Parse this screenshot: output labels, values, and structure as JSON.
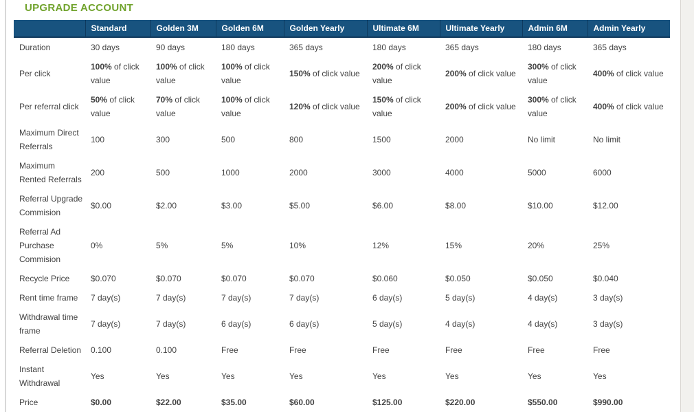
{
  "title": "UPGRADE ACCOUNT",
  "colors": {
    "title_green": "#71a32d",
    "header_blue": "#18537f",
    "header_text": "#ffffff",
    "body_text": "#424242"
  },
  "table": {
    "columns": [
      "",
      "Standard",
      "Golden 3M",
      "Golden 6M",
      "Golden Yearly",
      "Ultimate 6M",
      "Ultimate Yearly",
      "Admin 6M",
      "Admin Yearly"
    ],
    "rows": [
      {
        "label": "Duration",
        "cells": [
          "30 days",
          "90 days",
          "180 days",
          "365 days",
          "180 days",
          "365 days",
          "180 days",
          "365 days"
        ]
      },
      {
        "label": "Per click",
        "cells": [
          {
            "b": "100%",
            "t": " of click value"
          },
          {
            "b": "100%",
            "t": " of click value"
          },
          {
            "b": "100%",
            "t": " of click value"
          },
          {
            "b": "150%",
            "t": " of click value"
          },
          {
            "b": "200%",
            "t": " of click value"
          },
          {
            "b": "200%",
            "t": " of click value"
          },
          {
            "b": "300%",
            "t": " of click value"
          },
          {
            "b": "400%",
            "t": " of click value"
          }
        ]
      },
      {
        "label": "Per referral click",
        "cells": [
          {
            "b": "50%",
            "t": " of click value"
          },
          {
            "b": "70%",
            "t": " of click value"
          },
          {
            "b": "100%",
            "t": " of click value"
          },
          {
            "b": "120%",
            "t": " of click value"
          },
          {
            "b": "150%",
            "t": " of click value"
          },
          {
            "b": "200%",
            "t": " of click value"
          },
          {
            "b": "300%",
            "t": " of click value"
          },
          {
            "b": "400%",
            "t": " of click value"
          }
        ]
      },
      {
        "label": "Maximum Direct Referrals",
        "cells": [
          "100",
          "300",
          "500",
          "800",
          "1500",
          "2000",
          "No limit",
          "No limit"
        ]
      },
      {
        "label": "Maximum Rented Referrals",
        "cells": [
          "200",
          "500",
          "1000",
          "2000",
          "3000",
          "4000",
          "5000",
          "6000"
        ]
      },
      {
        "label": "Referral Upgrade Commision",
        "cells": [
          "$0.00",
          "$2.00",
          "$3.00",
          "$5.00",
          "$6.00",
          "$8.00",
          "$10.00",
          "$12.00"
        ]
      },
      {
        "label": "Referral Ad Purchase Commision",
        "cells": [
          "0%",
          "5%",
          "5%",
          "10%",
          "12%",
          "15%",
          "20%",
          "25%"
        ]
      },
      {
        "label": "Recycle Price",
        "cells": [
          "$0.070",
          "$0.070",
          "$0.070",
          "$0.070",
          "$0.060",
          "$0.050",
          "$0.050",
          "$0.040"
        ]
      },
      {
        "label": "Rent time frame",
        "cells": [
          "7 day(s)",
          "7 day(s)",
          "7 day(s)",
          "7 day(s)",
          "6 day(s)",
          "5 day(s)",
          "4 day(s)",
          "3 day(s)"
        ]
      },
      {
        "label": "Withdrawal time frame",
        "cells": [
          "7 day(s)",
          "7 day(s)",
          "6 day(s)",
          "6 day(s)",
          "5 day(s)",
          "4 day(s)",
          "4 day(s)",
          "3 day(s)"
        ]
      },
      {
        "label": "Referral Deletion",
        "cells": [
          "0.100",
          "0.100",
          "Free",
          "Free",
          "Free",
          "Free",
          "Free",
          "Free"
        ]
      },
      {
        "label": "Instant Withdrawal",
        "cells": [
          "Yes",
          "Yes",
          "Yes",
          "Yes",
          "Yes",
          "Yes",
          "Yes",
          "Yes"
        ]
      },
      {
        "label": "Price",
        "bold_values": true,
        "cells": [
          "$0.00",
          "$22.00",
          "$35.00",
          "$60.00",
          "$125.00",
          "$220.00",
          "$550.00",
          "$990.00"
        ]
      }
    ]
  }
}
